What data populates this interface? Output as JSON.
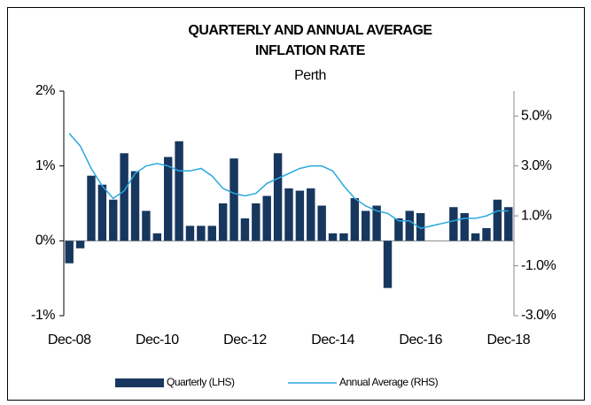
{
  "chart_data": {
    "type": "bar-line",
    "title": [
      "QUARTERLY AND ANNUAL AVERAGE",
      "INFLATION RATE"
    ],
    "subtitle": "Perth",
    "categories": [
      "Dec-08",
      null,
      null,
      null,
      null,
      null,
      null,
      null,
      "Dec-10",
      null,
      null,
      null,
      null,
      null,
      null,
      null,
      "Dec-12",
      null,
      null,
      null,
      null,
      null,
      null,
      null,
      "Dec-14",
      null,
      null,
      null,
      null,
      null,
      null,
      null,
      "Dec-16",
      null,
      null,
      null,
      null,
      null,
      null,
      null,
      "Dec-18"
    ],
    "series": [
      {
        "name": "Quarterly (LHS)",
        "color": "#17375e",
        "type": "bar",
        "values": [
          -0.3,
          -0.1,
          0.87,
          0.75,
          0.55,
          1.17,
          0.93,
          0.4,
          0.1,
          1.12,
          1.33,
          0.2,
          0.2,
          0.2,
          0.5,
          1.1,
          0.3,
          0.5,
          0.6,
          1.17,
          0.7,
          0.67,
          0.7,
          0.47,
          0.1,
          0.1,
          0.57,
          0.4,
          0.47,
          -0.63,
          0.3,
          0.4,
          0.37,
          0,
          0,
          0.45,
          0.37,
          0.1,
          0.17,
          0.55,
          0.45
        ]
      },
      {
        "name": "Annual Average (RHS)",
        "color": "#29a8e0",
        "type": "line",
        "axis": "y2",
        "values": [
          4.3,
          3.8,
          2.9,
          2.2,
          1.7,
          2.0,
          2.7,
          3.0,
          3.1,
          3.0,
          2.8,
          2.8,
          2.9,
          2.6,
          2.1,
          1.9,
          1.8,
          1.9,
          2.3,
          2.5,
          2.7,
          2.9,
          3.0,
          3.0,
          2.8,
          2.2,
          1.7,
          1.4,
          1.2,
          1.1,
          0.8,
          0.8,
          0.5,
          0.6,
          0.7,
          0.8,
          0.9,
          0.9,
          1.0,
          1.2,
          1.2
        ]
      }
    ],
    "ylim": [
      -1,
      2
    ],
    "yticks": [
      {
        "value": 2,
        "label": "2%"
      },
      {
        "value": 1,
        "label": "1%"
      },
      {
        "value": 0,
        "label": "0%"
      },
      {
        "value": -1,
        "label": "-1%"
      }
    ],
    "y2lim": [
      -3,
      6
    ],
    "y2ticks": [
      {
        "value": 5,
        "label": "5.0%"
      },
      {
        "value": 3,
        "label": "3.0%"
      },
      {
        "value": 1,
        "label": "1.0%"
      },
      {
        "value": -1,
        "label": "-1.0%"
      },
      {
        "value": -3,
        "label": "-3.0%"
      }
    ],
    "legend": "bottom"
  }
}
